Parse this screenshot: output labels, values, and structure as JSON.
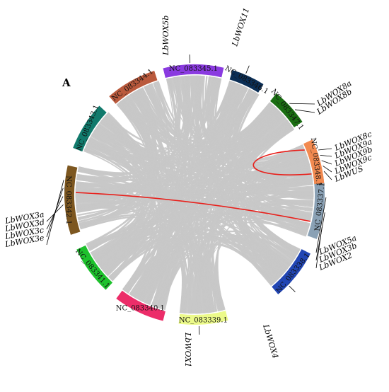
{
  "panel_letter": "A",
  "colors": {
    "link": "#c8c8c8",
    "highlight": "#e8211c"
  },
  "chromosomes": [
    {
      "name": "NC_083337.1",
      "color": "#8aa1b5"
    },
    {
      "name": "NC_083338.1",
      "color": "#2246b4"
    },
    {
      "name": "NC_083339.1",
      "color": "#ecfa8a"
    },
    {
      "name": "NC_083340.1",
      "color": "#ec2d69"
    },
    {
      "name": "NC_083341.1",
      "color": "#1ec22d"
    },
    {
      "name": "NC_083342.1",
      "color": "#7d5720"
    },
    {
      "name": "NC_083343.1",
      "color": "#117a6c"
    },
    {
      "name": "NC_083344.1",
      "color": "#ba5a3d"
    },
    {
      "name": "NC_083345.1",
      "color": "#8a3ae0"
    },
    {
      "name": "NC_083346.1",
      "color": "#0b2e55"
    },
    {
      "name": "NC_083347.1",
      "color": "#1a6e12"
    },
    {
      "name": "NC_083348.1",
      "color": "#f28a50"
    }
  ],
  "genes": [
    {
      "group": "NC_083337.1",
      "labels": [
        "LbWOX5a",
        "LbWOX3b",
        "LbWOX2"
      ]
    },
    {
      "group": "NC_083338.1",
      "labels": [
        "LbWOX4"
      ]
    },
    {
      "group": "NC_083339.1",
      "labels": [
        "LbWOX1"
      ]
    },
    {
      "group": "NC_083342.1",
      "labels": [
        "LbWOX3a",
        "LbWOX3d",
        "LbWOX3c",
        "LbWOX3e"
      ]
    },
    {
      "group": "NC_083345.1",
      "labels": [
        "LbWOX5b"
      ]
    },
    {
      "group": "NC_083346.1",
      "labels": [
        "LbWOX11"
      ]
    },
    {
      "group": "NC_083347.1",
      "labels": [
        "LbWOX8a",
        "LbWOX8b"
      ]
    },
    {
      "group": "NC_083348.1",
      "labels": [
        "LbWOX8c",
        "LbWOX9a",
        "LbWOX9b",
        "LbWOX9c",
        "LbWUS"
      ]
    }
  ],
  "highlight_links": [
    {
      "from": "NC_083342.1",
      "to": "NC_083337.1"
    },
    {
      "from": "NC_083348.1",
      "to": "NC_083348.1"
    }
  ]
}
